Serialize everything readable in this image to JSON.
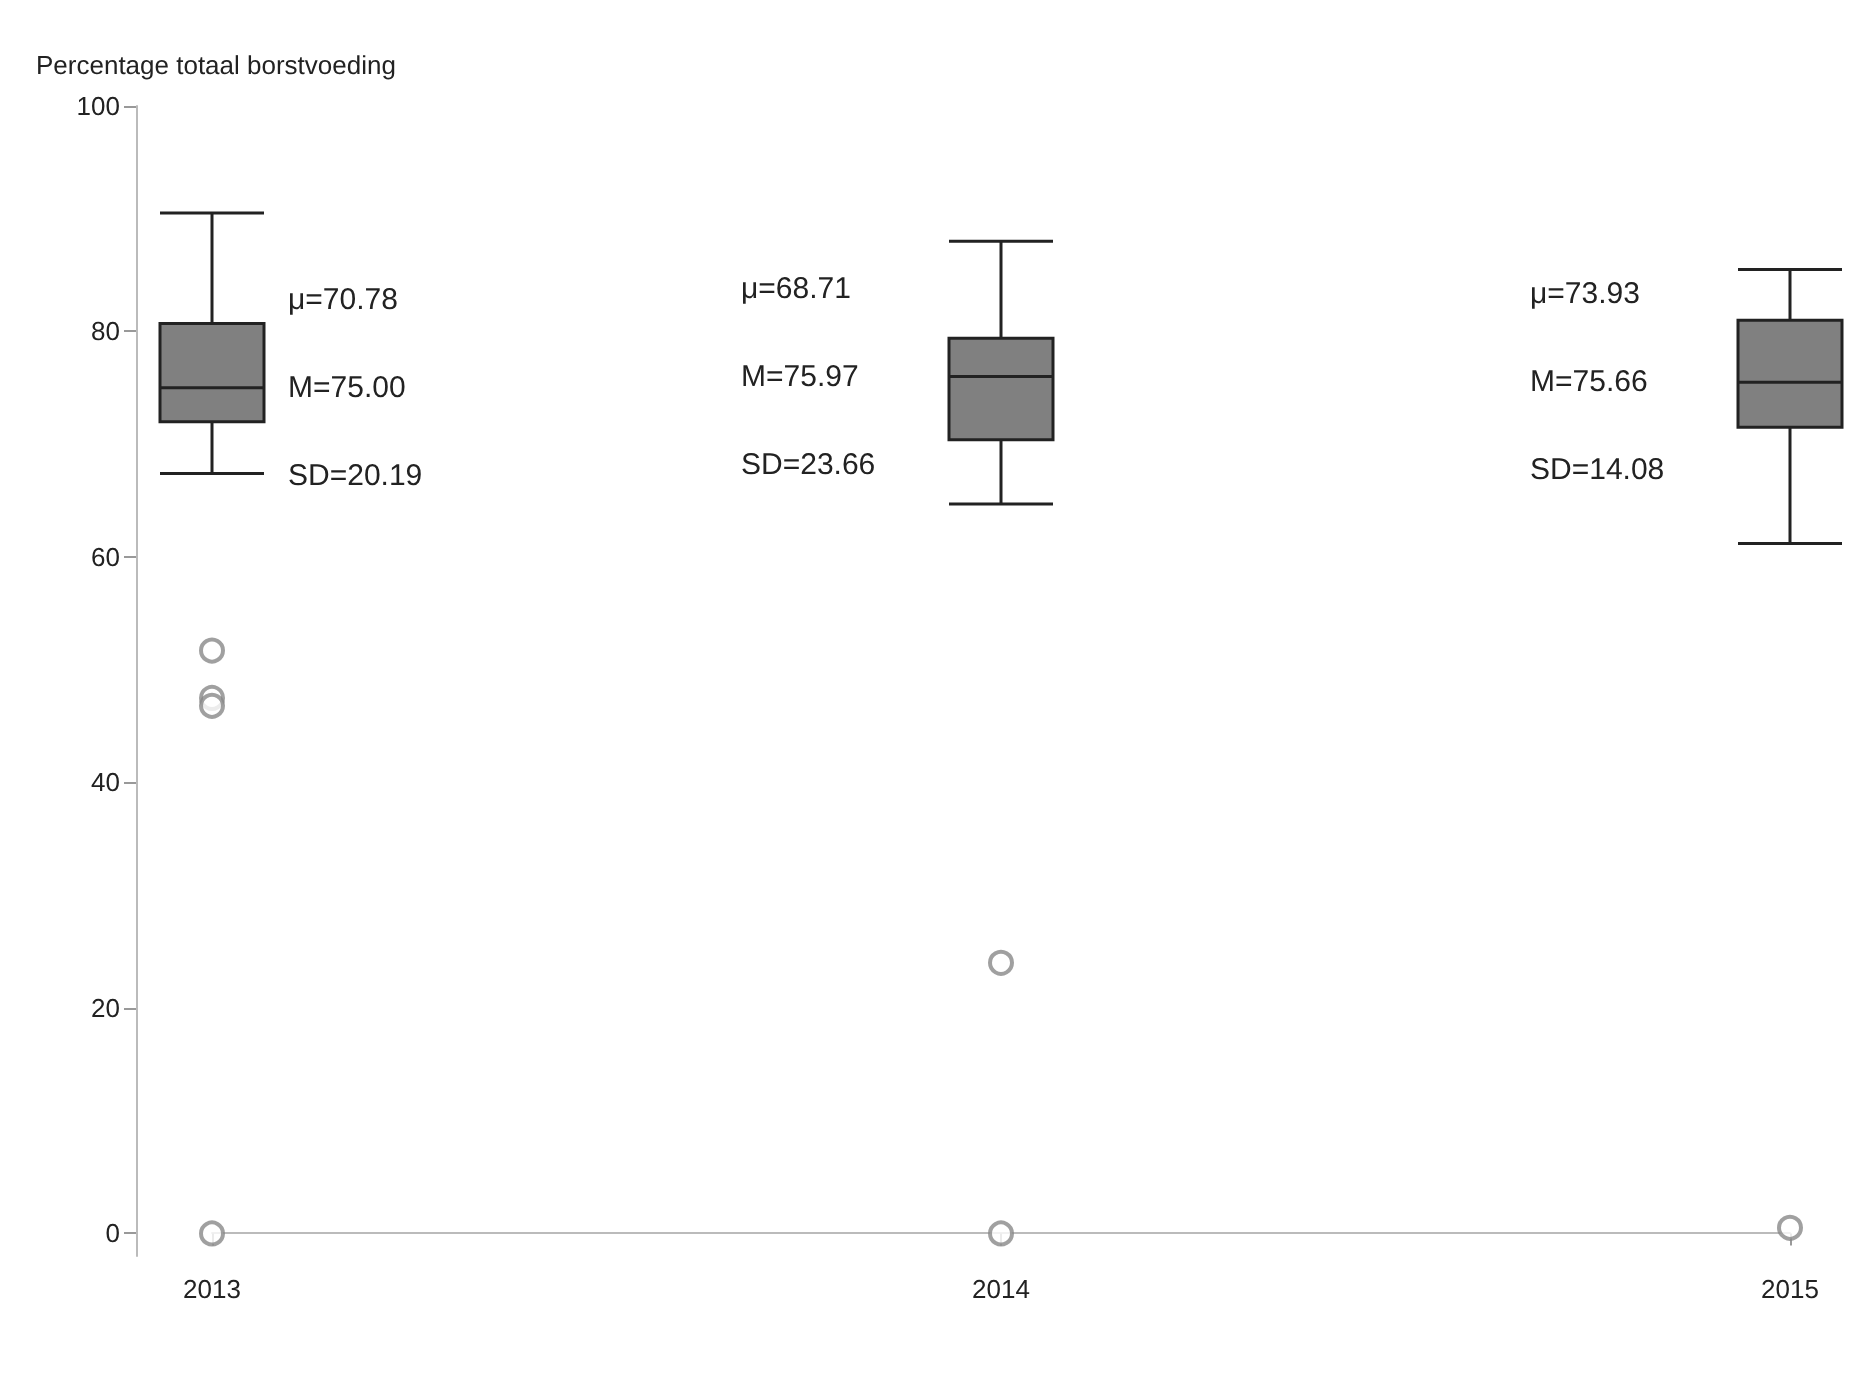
{
  "chart_data": {
    "type": "box",
    "ylabel": "Percentage totaal borstvoeding",
    "categories": [
      "2013",
      "2014",
      "2015"
    ],
    "boxes": [
      {
        "low": 67.4,
        "q1": 72.0,
        "median": 75.0,
        "q3": 80.7,
        "high": 90.5,
        "outliers": [
          51.7,
          47.5,
          46.8,
          0
        ]
      },
      {
        "low": 64.7,
        "q1": 70.4,
        "median": 76.0,
        "q3": 79.4,
        "high": 88.0,
        "outliers": [
          24.0,
          0
        ]
      },
      {
        "low": 61.2,
        "q1": 71.5,
        "median": 75.5,
        "q3": 81.0,
        "high": 85.5,
        "outliers": [
          0.5
        ]
      }
    ],
    "color": "#808080",
    "ylim": [
      -2,
      100
    ],
    "yticks": [
      0,
      20,
      40,
      60,
      80,
      100
    ],
    "grid": false,
    "annotations": [
      "μ=70.78",
      "M=75.00",
      "SD=20.19",
      "μ=68.71",
      "M=75.97",
      "SD=23.66",
      "μ=73.93",
      "M=75.66",
      "SD=14.08"
    ]
  }
}
